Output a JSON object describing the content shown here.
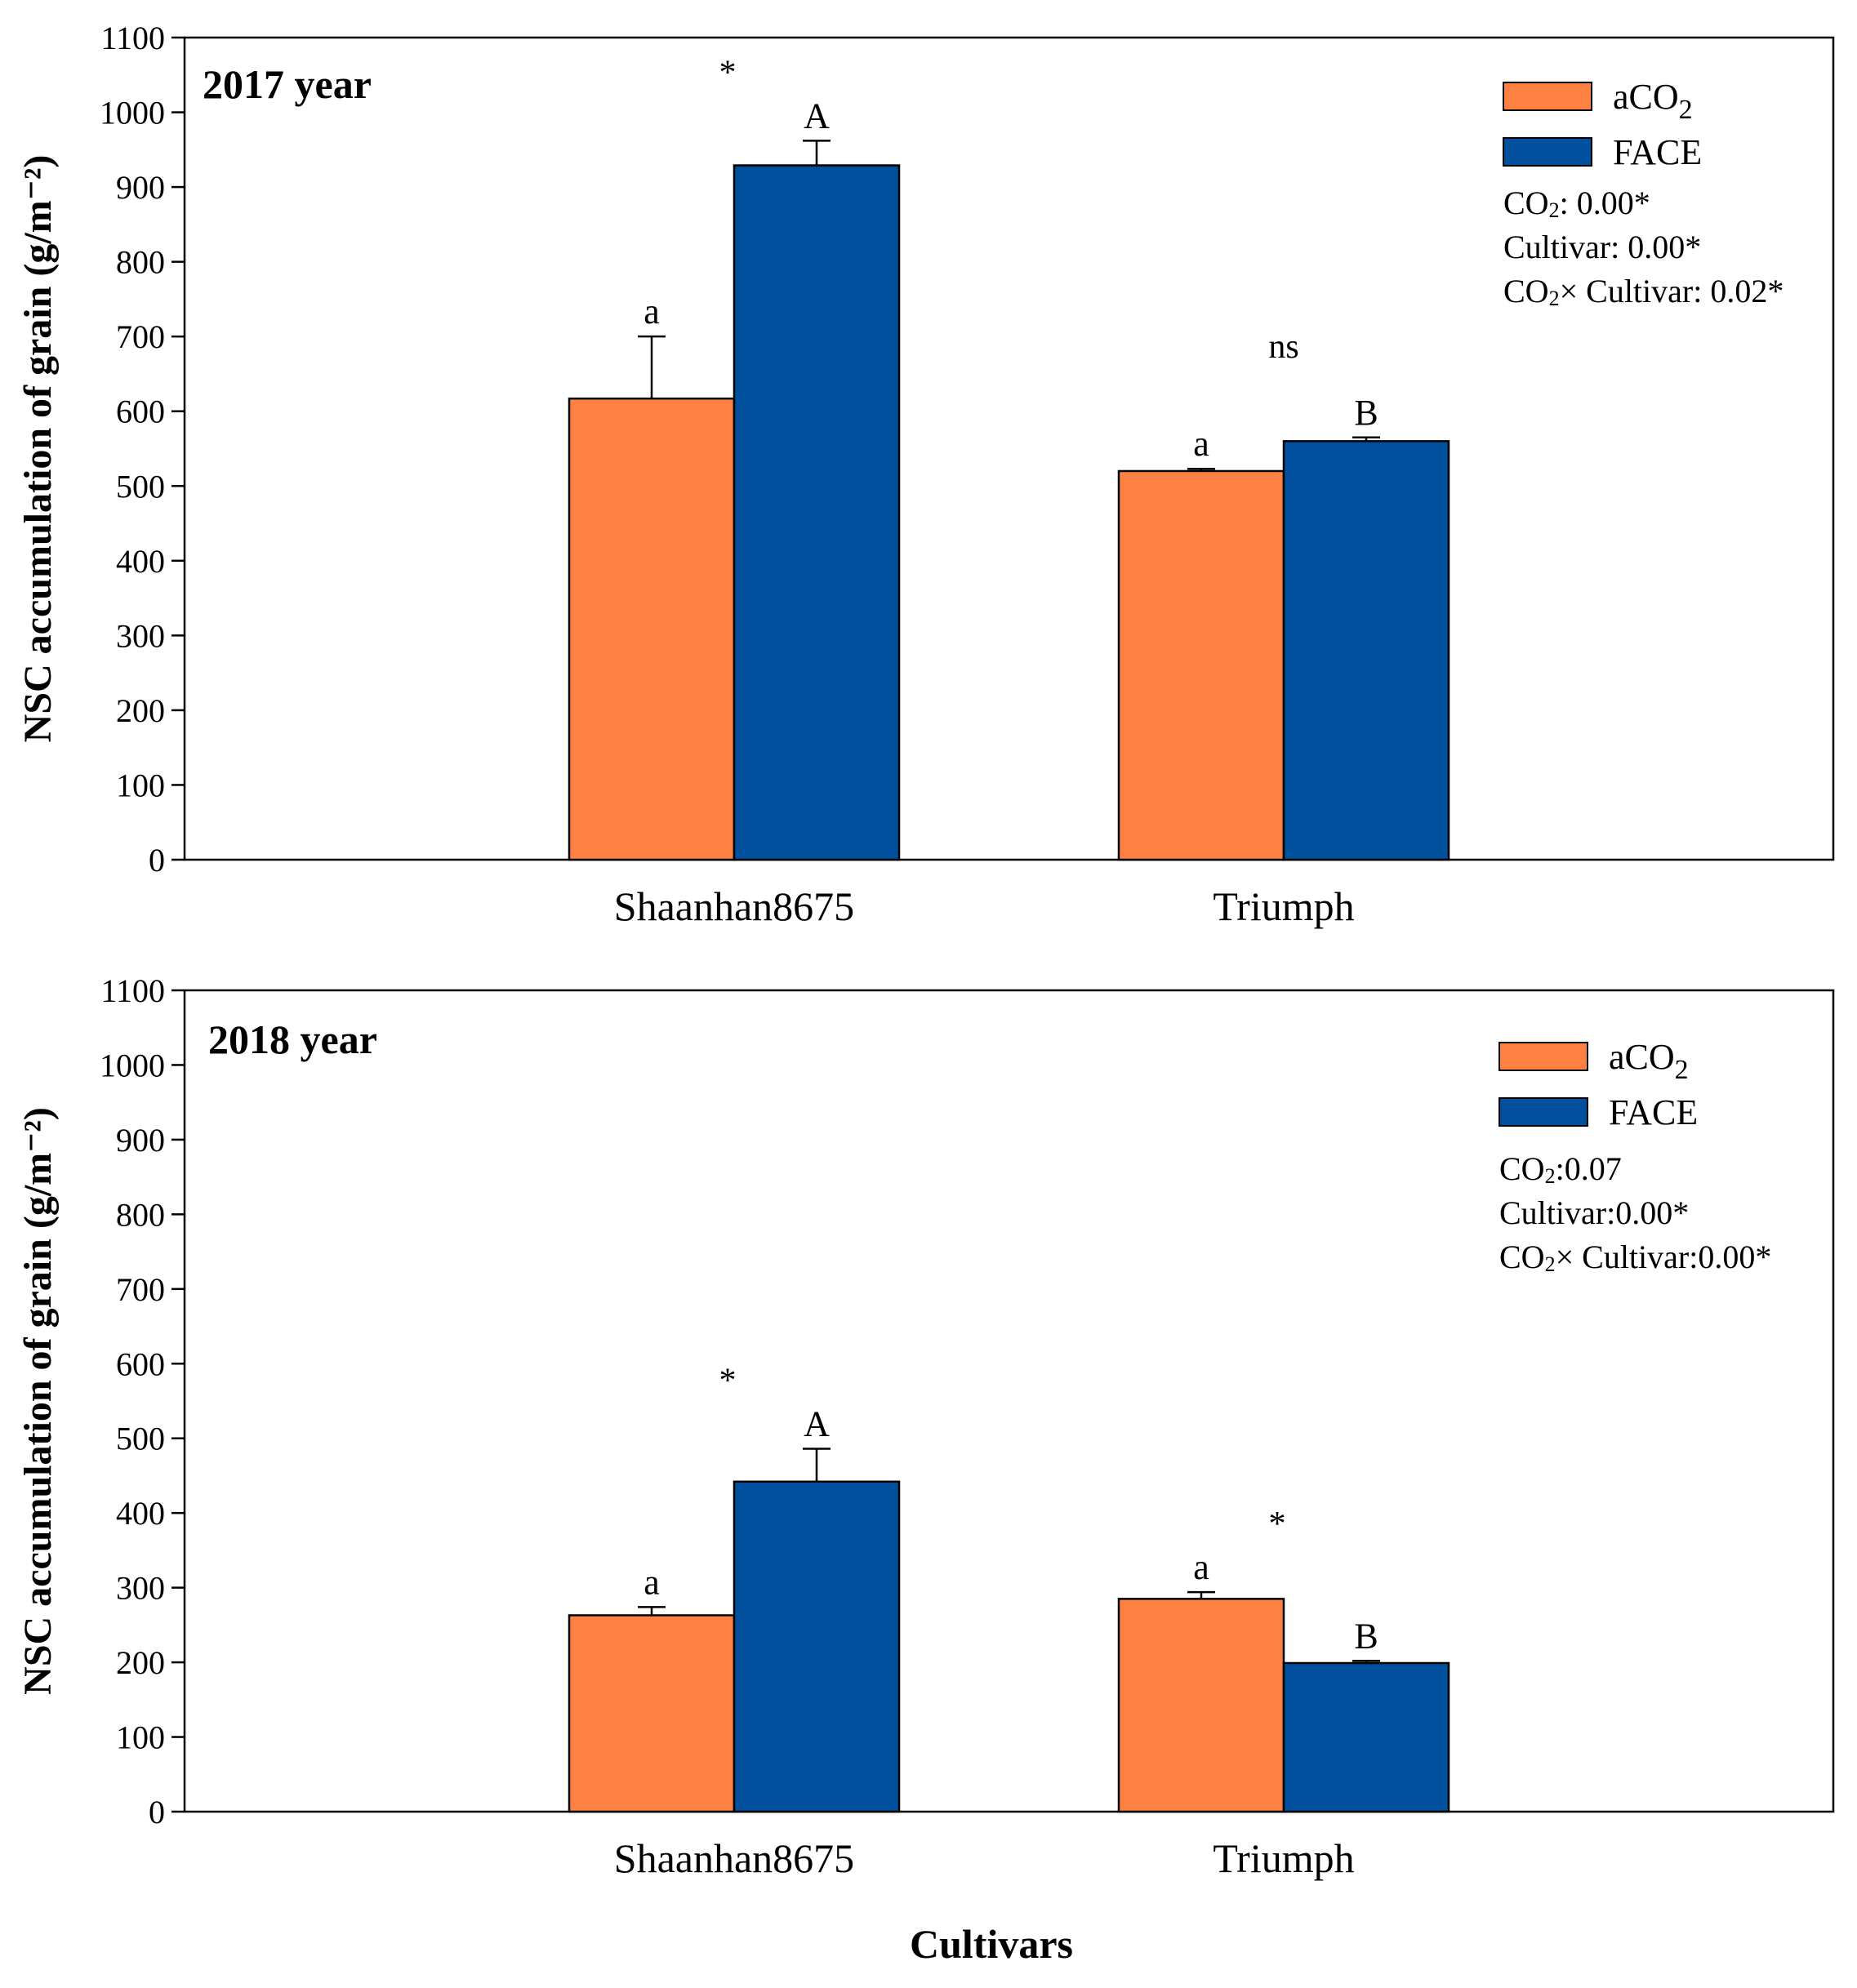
{
  "colors": {
    "aCO2": "#FF8142",
    "FACE": "#00509E",
    "axis": "#000000"
  },
  "xlabel": "Cultivars",
  "chart_data": [
    {
      "type": "bar",
      "title": "2017 year",
      "ylabel": "NSC accumulation of grain (g/m⁻²)",
      "ylim": [
        0,
        1100
      ],
      "yticks": [
        0,
        100,
        200,
        300,
        400,
        500,
        600,
        700,
        800,
        900,
        1000,
        1100
      ],
      "categories": [
        "Shaanhan8675",
        "Triumph"
      ],
      "series": [
        {
          "name": "aCO2",
          "legend_main": "aCO",
          "legend_sub": "2",
          "values": [
            617,
            520
          ],
          "errors": [
            83,
            3
          ],
          "letters": [
            "a",
            "a"
          ]
        },
        {
          "name": "FACE",
          "legend_main": "FACE",
          "legend_sub": "",
          "values": [
            929,
            560
          ],
          "errors": [
            33,
            5
          ],
          "letters": [
            "A",
            "B"
          ]
        }
      ],
      "significance": [
        "*",
        "ns"
      ],
      "stats": [
        {
          "pre": "CO",
          "sub": "2",
          "post": ": 0.00*"
        },
        {
          "pre": "Cultivar: 0.00*",
          "sub": "",
          "post": ""
        },
        {
          "pre": "CO",
          "sub": "2",
          "post": "×  Cultivar: 0.02*"
        }
      ]
    },
    {
      "type": "bar",
      "title": "2018 year",
      "ylabel": "NSC accumulation of grain (g/m⁻²)",
      "ylim": [
        0,
        1100
      ],
      "yticks": [
        0,
        100,
        200,
        300,
        400,
        500,
        600,
        700,
        800,
        900,
        1000,
        1100
      ],
      "categories": [
        "Shaanhan8675",
        "Triumph"
      ],
      "series": [
        {
          "name": "aCO2",
          "legend_main": "aCO",
          "legend_sub": "2",
          "values": [
            263,
            285
          ],
          "errors": [
            11,
            9
          ],
          "letters": [
            "a",
            "a"
          ]
        },
        {
          "name": "FACE",
          "legend_main": "FACE",
          "legend_sub": "",
          "values": [
            442,
            199
          ],
          "errors": [
            44,
            3
          ],
          "letters": [
            "A",
            "B"
          ]
        }
      ],
      "significance": [
        "*",
        "*"
      ],
      "stats": [
        {
          "pre": "CO",
          "sub": "2",
          "post": ":0.07"
        },
        {
          "pre": "Cultivar:0.00*",
          "sub": "",
          "post": ""
        },
        {
          "pre": "CO",
          "sub": "2",
          "post": "×  Cultivar:0.00*"
        }
      ]
    }
  ]
}
